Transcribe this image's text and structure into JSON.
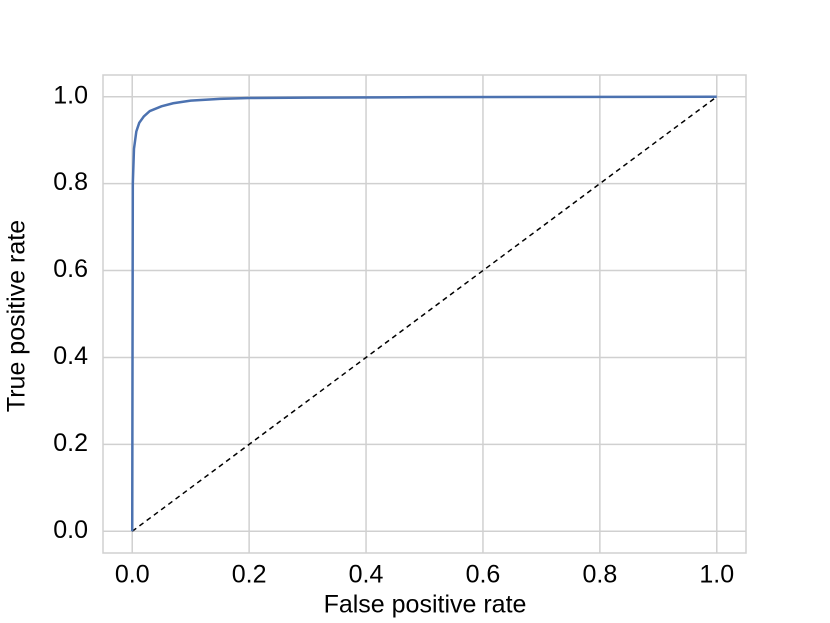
{
  "chart_data": {
    "type": "line",
    "xlabel": "False positive rate",
    "ylabel": "True positive rate",
    "xlim": [
      -0.05,
      1.05
    ],
    "ylim": [
      -0.05,
      1.05
    ],
    "xticks": [
      {
        "value": 0,
        "label": "0.0"
      },
      0.2,
      0.4,
      0.6,
      0.8,
      {
        "value": 1,
        "label": "1.0"
      }
    ],
    "yticks": [
      {
        "value": 0,
        "label": "0.0"
      },
      0.2,
      0.4,
      0.6,
      0.8,
      {
        "value": 1,
        "label": "1.0"
      }
    ],
    "grid": true,
    "series": [
      {
        "color": "#4c72b0",
        "linestyle": "solid",
        "x": [
          0,
          0.001,
          0.003,
          0.007,
          0.012,
          0.02,
          0.03,
          0.05,
          0.07,
          0.1,
          0.15,
          0.2,
          0.3,
          0.5,
          1
        ],
        "values": [
          0,
          0.8,
          0.88,
          0.92,
          0.94,
          0.955,
          0.967,
          0.978,
          0.985,
          0.991,
          0.995,
          0.997,
          0.998,
          0.999,
          1
        ]
      },
      {
        "color": "#000000",
        "linestyle": "dashed",
        "x": [
          0,
          1
        ],
        "values": [
          0,
          1
        ]
      }
    ]
  }
}
